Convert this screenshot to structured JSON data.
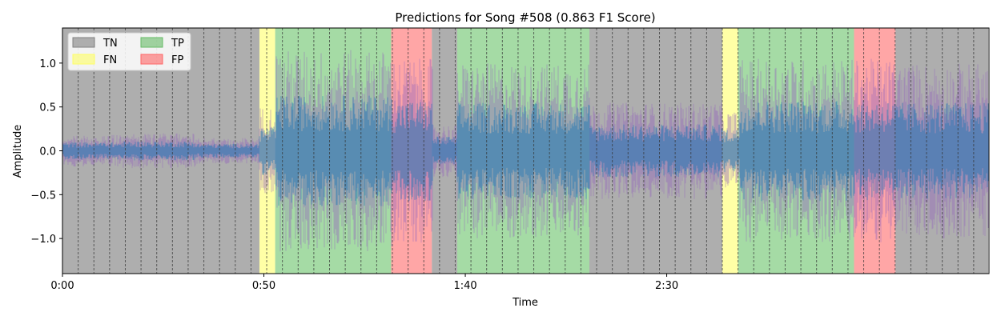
{
  "chart_data": {
    "type": "area",
    "title": "Predictions for Song #508 (0.863 F1 Score)",
    "xlabel": "Time",
    "ylabel": "Amplitude",
    "xlim": [
      0,
      230
    ],
    "ylim": [
      -1.4,
      1.4
    ],
    "x_ticks": [
      {
        "value": 0,
        "label": "0:00"
      },
      {
        "value": 50,
        "label": "0:50"
      },
      {
        "value": 100,
        "label": "1:40"
      },
      {
        "value": 150,
        "label": "2:30"
      }
    ],
    "y_ticks": [
      {
        "value": -1.0,
        "label": "−1.0"
      },
      {
        "value": -0.5,
        "label": "−0.5"
      },
      {
        "value": 0.0,
        "label": "0.0"
      },
      {
        "value": 0.5,
        "label": "0.5"
      },
      {
        "value": 1.0,
        "label": "1.0"
      }
    ],
    "legend": {
      "placement": "top-left",
      "entries": [
        {
          "label": "TN",
          "color": "#808080"
        },
        {
          "label": "FN",
          "color": "#ffff66"
        },
        {
          "label": "TP",
          "color": "#66bb66"
        },
        {
          "label": "FP",
          "color": "#ff6666"
        }
      ]
    },
    "segment_colors": {
      "TN": "#8c8c8c",
      "FN": "#ffff80",
      "TP": "#7fcc7f",
      "FP": "#ff8080"
    },
    "segments": [
      {
        "label": "TN",
        "start": 0,
        "end": 48.9
      },
      {
        "label": "FN",
        "start": 48.9,
        "end": 52.8
      },
      {
        "label": "TP",
        "start": 52.8,
        "end": 81.6
      },
      {
        "label": "FP",
        "start": 81.6,
        "end": 91.7
      },
      {
        "label": "TN",
        "start": 91.7,
        "end": 98.0
      },
      {
        "label": "TP",
        "start": 98.0,
        "end": 130.8
      },
      {
        "label": "TN",
        "start": 130.8,
        "end": 163.8
      },
      {
        "label": "FN",
        "start": 163.8,
        "end": 167.7
      },
      {
        "label": "TP",
        "start": 167.7,
        "end": 196.5
      },
      {
        "label": "FP",
        "start": 196.5,
        "end": 206.8
      },
      {
        "label": "TN",
        "start": 206.8,
        "end": 229.8
      }
    ],
    "beat_line_spacing": 3.9,
    "waveform_colors": {
      "primary": "#1f77b4",
      "secondary": "#9467bd"
    },
    "envelope": [
      {
        "start": 0,
        "end": 15,
        "amplitude": 0.18
      },
      {
        "start": 15,
        "end": 33,
        "amplitude": 0.2
      },
      {
        "start": 33,
        "end": 48.9,
        "amplitude": 0.15
      },
      {
        "start": 48.9,
        "end": 53,
        "amplitude": 0.5
      },
      {
        "start": 53,
        "end": 82,
        "amplitude": 1.15
      },
      {
        "start": 82,
        "end": 92,
        "amplitude": 1.05
      },
      {
        "start": 92,
        "end": 98,
        "amplitude": 0.3
      },
      {
        "start": 98,
        "end": 131,
        "amplitude": 1.0
      },
      {
        "start": 131,
        "end": 164,
        "amplitude": 0.55
      },
      {
        "start": 164,
        "end": 168,
        "amplitude": 0.45
      },
      {
        "start": 168,
        "end": 197,
        "amplitude": 1.05
      },
      {
        "start": 197,
        "end": 207,
        "amplitude": 1.05
      },
      {
        "start": 207,
        "end": 230,
        "amplitude": 1.0
      }
    ]
  }
}
